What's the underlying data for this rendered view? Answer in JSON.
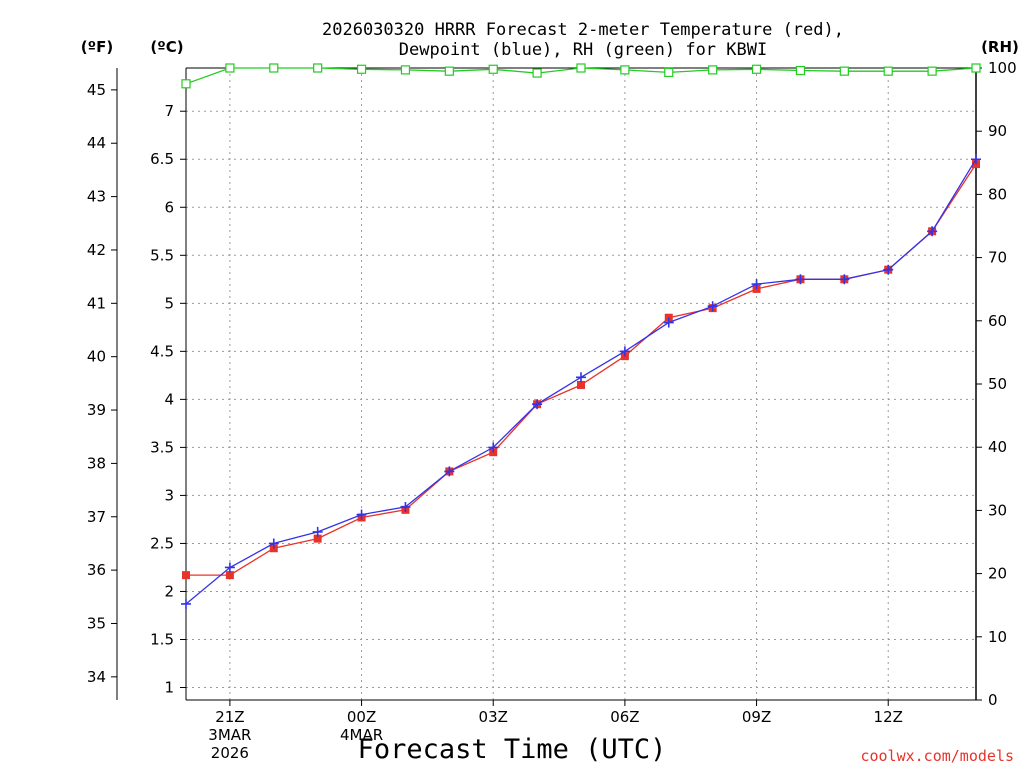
{
  "chart_data": {
    "type": "line",
    "title_lines": [
      "2026030320 HRRR Forecast 2-meter Temperature (red),",
      "Dewpoint (blue), RH (green) for KBWI"
    ],
    "xlabel": "Forecast Time (UTC)",
    "credit": "coolwx.com/models",
    "unit_labels": {
      "fahrenheit": "(ºF)",
      "celsius": "(ºC)",
      "rh": "(RH)"
    },
    "x_hours": [
      20,
      21,
      22,
      23,
      24,
      25,
      26,
      27,
      28,
      29,
      30,
      31,
      32,
      33,
      34,
      35,
      36,
      37,
      38
    ],
    "x_range": [
      20,
      38
    ],
    "x_ticks": [
      {
        "hour": 21,
        "lines": [
          "21Z",
          "3MAR",
          "2026"
        ]
      },
      {
        "hour": 24,
        "lines": [
          "00Z",
          "4MAR"
        ]
      },
      {
        "hour": 27,
        "lines": [
          "03Z"
        ]
      },
      {
        "hour": 30,
        "lines": [
          "06Z"
        ]
      },
      {
        "hour": 33,
        "lines": [
          "09Z"
        ]
      },
      {
        "hour": 36,
        "lines": [
          "12Z"
        ]
      }
    ],
    "celsius_axis": {
      "range": [
        0.87,
        7.45
      ],
      "ticks": [
        1,
        1.5,
        2,
        2.5,
        3,
        3.5,
        4,
        4.5,
        5,
        5.5,
        6,
        6.5,
        7
      ],
      "tick_labels": [
        "1",
        "1.5",
        "2",
        "2.5",
        "3",
        "3.5",
        "4",
        "4.5",
        "5",
        "5.5",
        "6",
        "6.5",
        "7"
      ]
    },
    "fahrenheit_axis": {
      "ticks": [
        34,
        35,
        36,
        37,
        38,
        39,
        40,
        41,
        42,
        43,
        44,
        45
      ],
      "tick_labels": [
        "34",
        "35",
        "36",
        "37",
        "38",
        "39",
        "40",
        "41",
        "42",
        "43",
        "44",
        "45"
      ]
    },
    "rh_axis": {
      "range": [
        0,
        100
      ],
      "ticks": [
        0,
        10,
        20,
        30,
        40,
        50,
        60,
        70,
        80,
        90,
        100
      ],
      "tick_labels": [
        "0",
        "10",
        "20",
        "30",
        "40",
        "50",
        "60",
        "70",
        "80",
        "90",
        "100"
      ]
    },
    "series": [
      {
        "name": "Temperature",
        "axis": "celsius",
        "color": "#e8332a",
        "marker": "square",
        "values": [
          2.17,
          2.17,
          2.45,
          2.55,
          2.77,
          2.85,
          3.25,
          3.45,
          3.95,
          4.15,
          4.45,
          4.85,
          4.95,
          5.15,
          5.25,
          5.25,
          5.35,
          5.75,
          6.45
        ]
      },
      {
        "name": "Dewpoint",
        "axis": "celsius",
        "color": "#3333e8",
        "marker": "plus",
        "values": [
          1.87,
          2.25,
          2.5,
          2.62,
          2.8,
          2.88,
          3.25,
          3.5,
          3.95,
          4.23,
          4.5,
          4.8,
          4.97,
          5.2,
          5.25,
          5.25,
          5.35,
          5.75,
          6.5
        ]
      },
      {
        "name": "RH",
        "axis": "rh",
        "color": "#22cc22",
        "marker": "square-open",
        "values": [
          97.5,
          100,
          100,
          100,
          99.8,
          99.7,
          99.5,
          99.8,
          99.2,
          100,
          99.7,
          99.3,
          99.7,
          99.8,
          99.6,
          99.5,
          99.5,
          99.5,
          100
        ]
      }
    ]
  }
}
